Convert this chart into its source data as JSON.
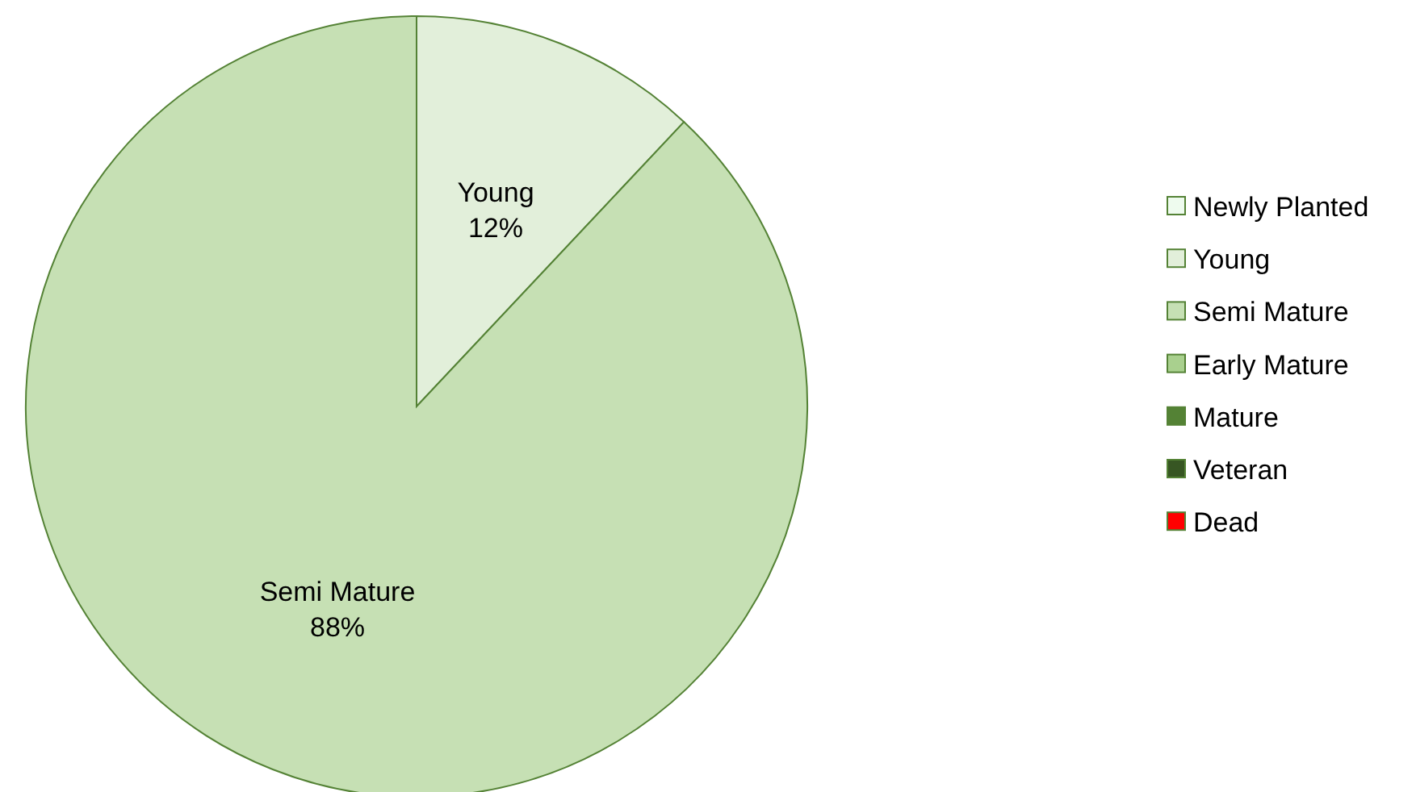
{
  "chart_data": {
    "type": "pie",
    "categories": [
      "Newly Planted",
      "Young",
      "Semi Mature",
      "Early Mature",
      "Mature",
      "Veteran",
      "Dead"
    ],
    "values": [
      0,
      12,
      88,
      0,
      0,
      0,
      0
    ],
    "colors": [
      "#eefbee",
      "#e2efda",
      "#c6e0b4",
      "#a9d08e",
      "#548235",
      "#375623",
      "#ff0000"
    ],
    "value_labels": [
      null,
      "12%",
      "88%",
      null,
      null,
      null,
      null
    ],
    "legend": "right"
  }
}
